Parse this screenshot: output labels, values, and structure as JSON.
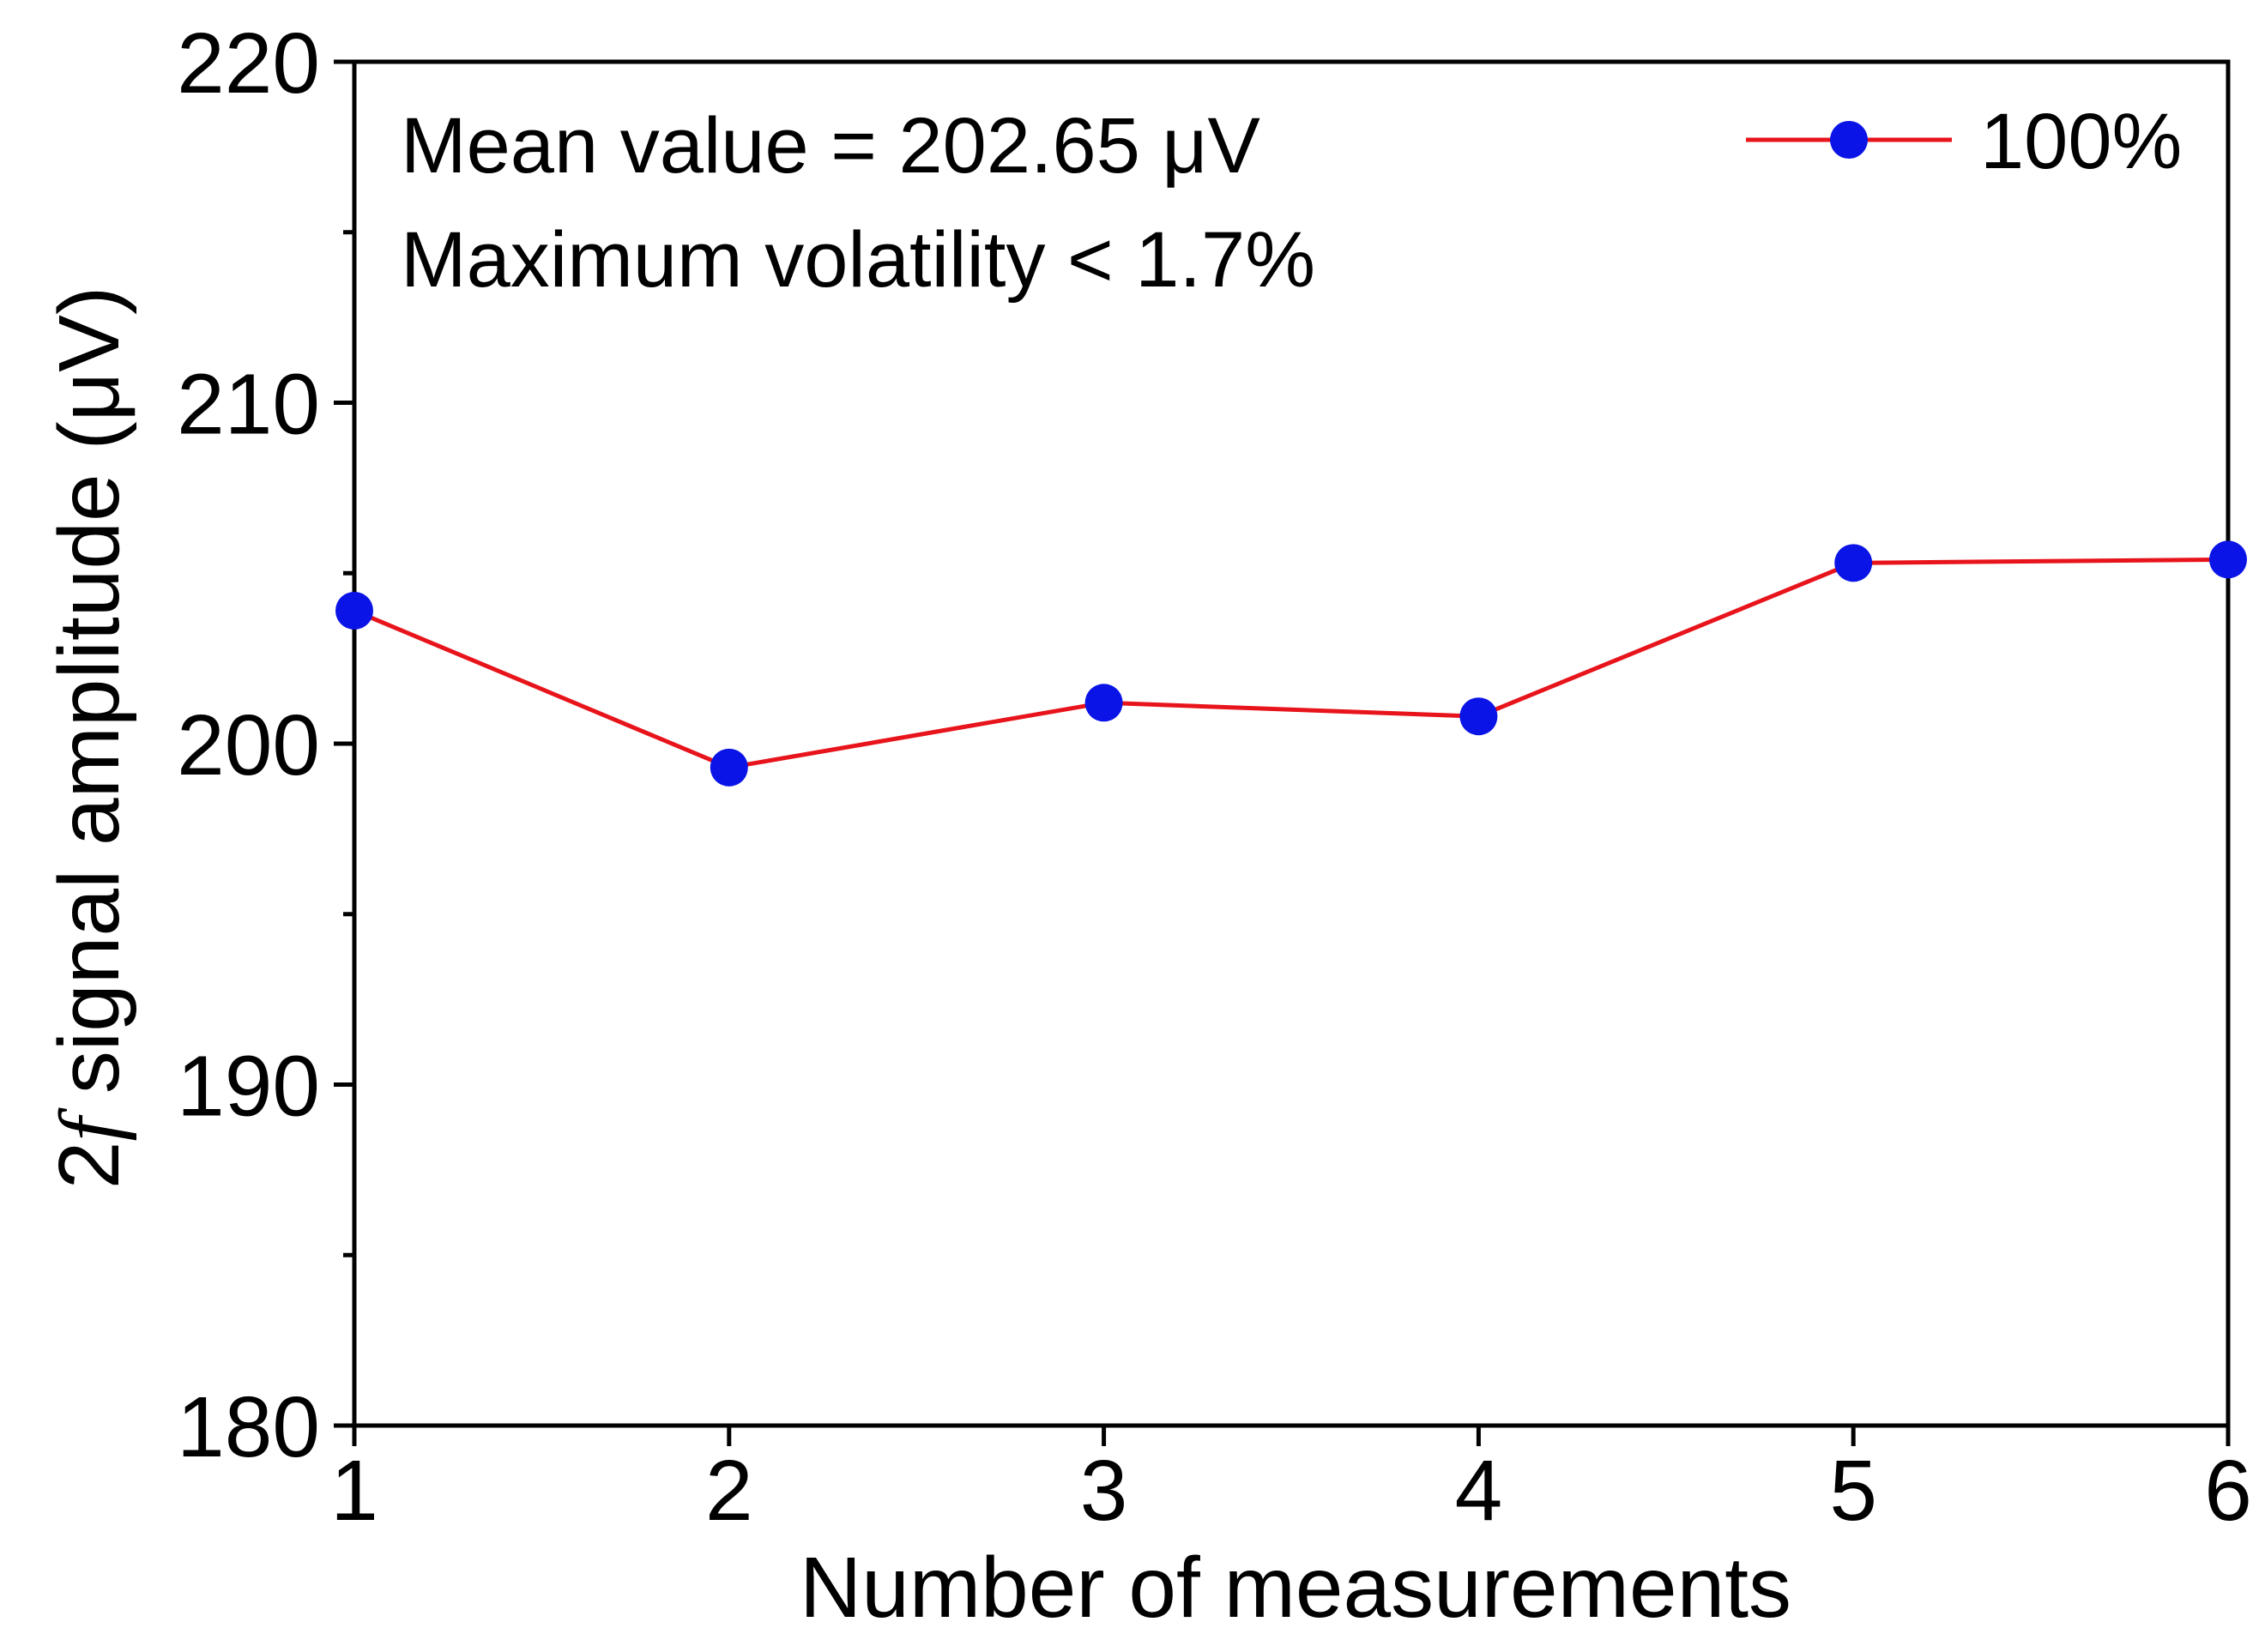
{
  "chart_data": {
    "type": "line",
    "title": "",
    "xlabel": "Number of measurements",
    "ylabel_prefix": "2",
    "ylabel_italic": "f",
    "ylabel_rest": " signal amplitude (μV)",
    "xlim": [
      1,
      6
    ],
    "ylim": [
      180,
      220
    ],
    "x_ticks": [
      1,
      2,
      3,
      4,
      5,
      6
    ],
    "y_ticks": [
      180,
      190,
      200,
      210,
      220
    ],
    "y_minor_ticks": [
      185,
      195,
      205,
      215
    ],
    "grid": false,
    "legend_position": "top-right",
    "series": [
      {
        "name": "100%",
        "line_color": "#e8141b",
        "marker_color": "#0a14e6",
        "x": [
          1,
          2,
          3,
          4,
          5,
          6
        ],
        "y": [
          203.9,
          199.3,
          201.2,
          200.8,
          205.3,
          205.4
        ]
      }
    ],
    "annotations": [
      "Mean value = 202.65 μV",
      "Maximum volatility < 1.7%"
    ]
  }
}
